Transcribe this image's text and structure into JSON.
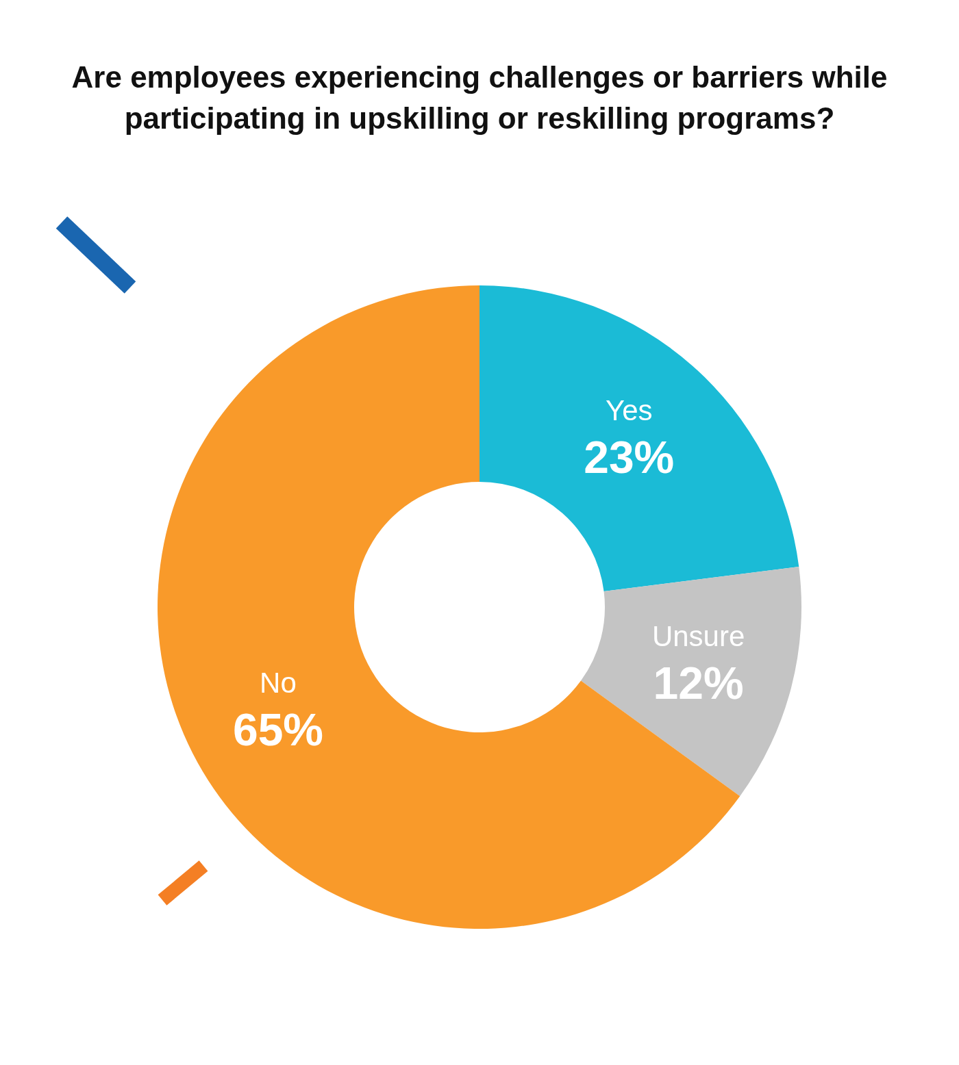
{
  "chart_data": {
    "type": "donut",
    "title": "Are employees experiencing challenges or barriers while participating in upskilling or reskilling programs?",
    "categories": [
      "Yes",
      "Unsure",
      "No"
    ],
    "values": [
      23,
      12,
      65
    ],
    "colors": [
      "#1bbbd6",
      "#c4c4c4",
      "#f99a2a"
    ],
    "value_labels": [
      "23%",
      "12%",
      "65%"
    ]
  }
}
